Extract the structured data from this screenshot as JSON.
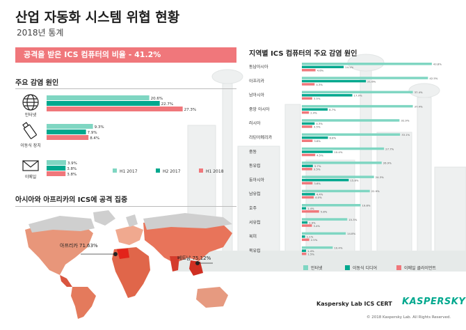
{
  "header": {
    "title": "산업 자동화 시스템 위협 현황",
    "subtitle": "2018년 통계"
  },
  "banner": {
    "text": "공격을 받은 ICS 컴퓨터의 비율 - 41.2%"
  },
  "sections": {
    "main_sources": "주요 감염 원인",
    "asia_africa": "아시아와 아프리카의 ICS에 공격 집중",
    "regional": "지역별 ICS 컴퓨터의 주요 감염 원인"
  },
  "colors": {
    "h1_2017": "#7fd6c2",
    "h2_2017": "#00a88e",
    "h1_2018": "#f0777b",
    "map_grey": "#d3d3d3"
  },
  "icons": {
    "internet": "globe-icon",
    "usb": "usb-drive-icon",
    "email": "envelope-icon"
  },
  "chart_data": [
    {
      "type": "bar",
      "orientation": "horizontal",
      "title": "주요 감염 원인",
      "categories": [
        "인터넷",
        "이동식 장치",
        "이메일"
      ],
      "series": [
        {
          "name": "H1 2017",
          "color": "#7fd6c2",
          "values": [
            20.6,
            9.3,
            3.9
          ],
          "labels": [
            "20.6%",
            "9.3%",
            "3.9%"
          ]
        },
        {
          "name": "H2 2017",
          "color": "#00a88e",
          "values": [
            22.7,
            7.9,
            3.8
          ],
          "labels": [
            "22.7%",
            "7.9%",
            "3.8%"
          ]
        },
        {
          "name": "H1 2018",
          "color": "#f0777b",
          "values": [
            27.3,
            8.4,
            3.8
          ],
          "labels": [
            "27.3%",
            "8.4%",
            "3.8%"
          ]
        }
      ],
      "xlim": [
        0,
        30
      ]
    },
    {
      "type": "bar",
      "orientation": "horizontal",
      "title": "지역별 ICS 컴퓨터의 주요 감염 원인",
      "categories": [
        "동남아시아",
        "아프리카",
        "남아시아",
        "중앙 아시아",
        "러시아",
        "라틴아메리카",
        "중동",
        "동유럽",
        "동아시아",
        "남유럽",
        "호주",
        "서유럽",
        "북미",
        "북유럽"
      ],
      "series": [
        {
          "name": "인터넷",
          "color": "#7fd6c2",
          "values": [
            43.8,
            42.5,
            37.4,
            37.4,
            32.9,
            33.1,
            27.7,
            26.9,
            24.3,
            22.9,
            19.8,
            15.3,
            14.8,
            10.4
          ],
          "labels": [
            "43.8%",
            "42.5%",
            "37.4%",
            "37.4%",
            "32.9%",
            "33.1%",
            "27.7%",
            "26.9%",
            "24.3%",
            "22.9%",
            "19.8%",
            "15.3%",
            "14.8%",
            "10.4%"
          ]
        },
        {
          "name": "이동식 디디어",
          "color": "#00a88e",
          "values": [
            14.1,
            21.6,
            17.0,
            8.7,
            4.3,
            8.8,
            10.4,
            3.7,
            15.8,
            4.4,
            1.4,
            1.9,
            1.1,
            1.4
          ],
          "labels": [
            "14.1%",
            "21.6%",
            "17.0%",
            "8.7%",
            "4.3%",
            "8.8%",
            "10.4%",
            "3.7%",
            "15.8%",
            "4.4%",
            "1.4%",
            "1.9%",
            "1.1%",
            "1.4%"
          ]
        },
        {
          "name": "이메일 클라이언트",
          "color": "#f0777b",
          "values": [
            4.6,
            4.3,
            3.5,
            2.4,
            3.5,
            3.6,
            4.5,
            3.5,
            3.6,
            4.0,
            5.8,
            3.4,
            2.5,
            1.5
          ],
          "labels": [
            "4.6%",
            "4.3%",
            "3.5%",
            "2.4%",
            "3.5%",
            "3.6%",
            "4.5%",
            "3.5%",
            "3.6%",
            "4.0%",
            "5.8%",
            "3.4%",
            "2.5%",
            "1.5%"
          ]
        }
      ],
      "xlim": [
        0,
        45
      ]
    }
  ],
  "map": {
    "callouts": [
      {
        "label": "아프리카 71.63%"
      },
      {
        "label": "베트남 75.12%"
      }
    ]
  },
  "footer": {
    "brand": "Kaspersky Lab ICS CERT",
    "logo": "KASPERSKY",
    "copyright": "© 2018 Kaspersky Lab. All Rights Reserved."
  }
}
